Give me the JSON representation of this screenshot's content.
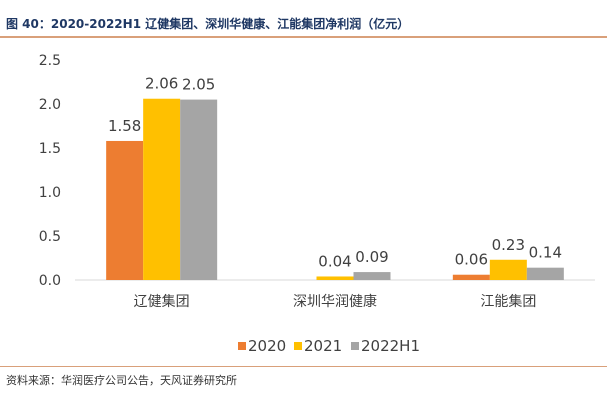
{
  "figure_title": "图 40：2020-2022H1 辽健集团、深圳华健康、江能集团净利润（亿元）",
  "source": "资料来源：华润医疗公司公告，天风证券研究所",
  "chart_data": {
    "type": "bar",
    "categories": [
      "辽健集团",
      "深圳华润健康",
      "江能集团"
    ],
    "series": [
      {
        "name": "2020",
        "color": "#ed7d31",
        "values": [
          1.58,
          null,
          0.06
        ],
        "labels": [
          "1.58",
          "",
          "0.06"
        ]
      },
      {
        "name": "2021",
        "color": "#ffc000",
        "values": [
          2.06,
          0.04,
          0.23
        ],
        "labels": [
          "2.06",
          "0.04",
          "0.23"
        ]
      },
      {
        "name": "2022H1",
        "color": "#a5a5a5",
        "values": [
          2.05,
          0.09,
          0.14
        ],
        "labels": [
          "2.05",
          "0.09",
          "0.14"
        ]
      }
    ],
    "ylim": [
      0,
      2.5
    ],
    "yticks": [
      "0.0",
      "0.5",
      "1.0",
      "1.5",
      "2.0",
      "2.5"
    ],
    "grid": false,
    "legend": "bottom"
  }
}
